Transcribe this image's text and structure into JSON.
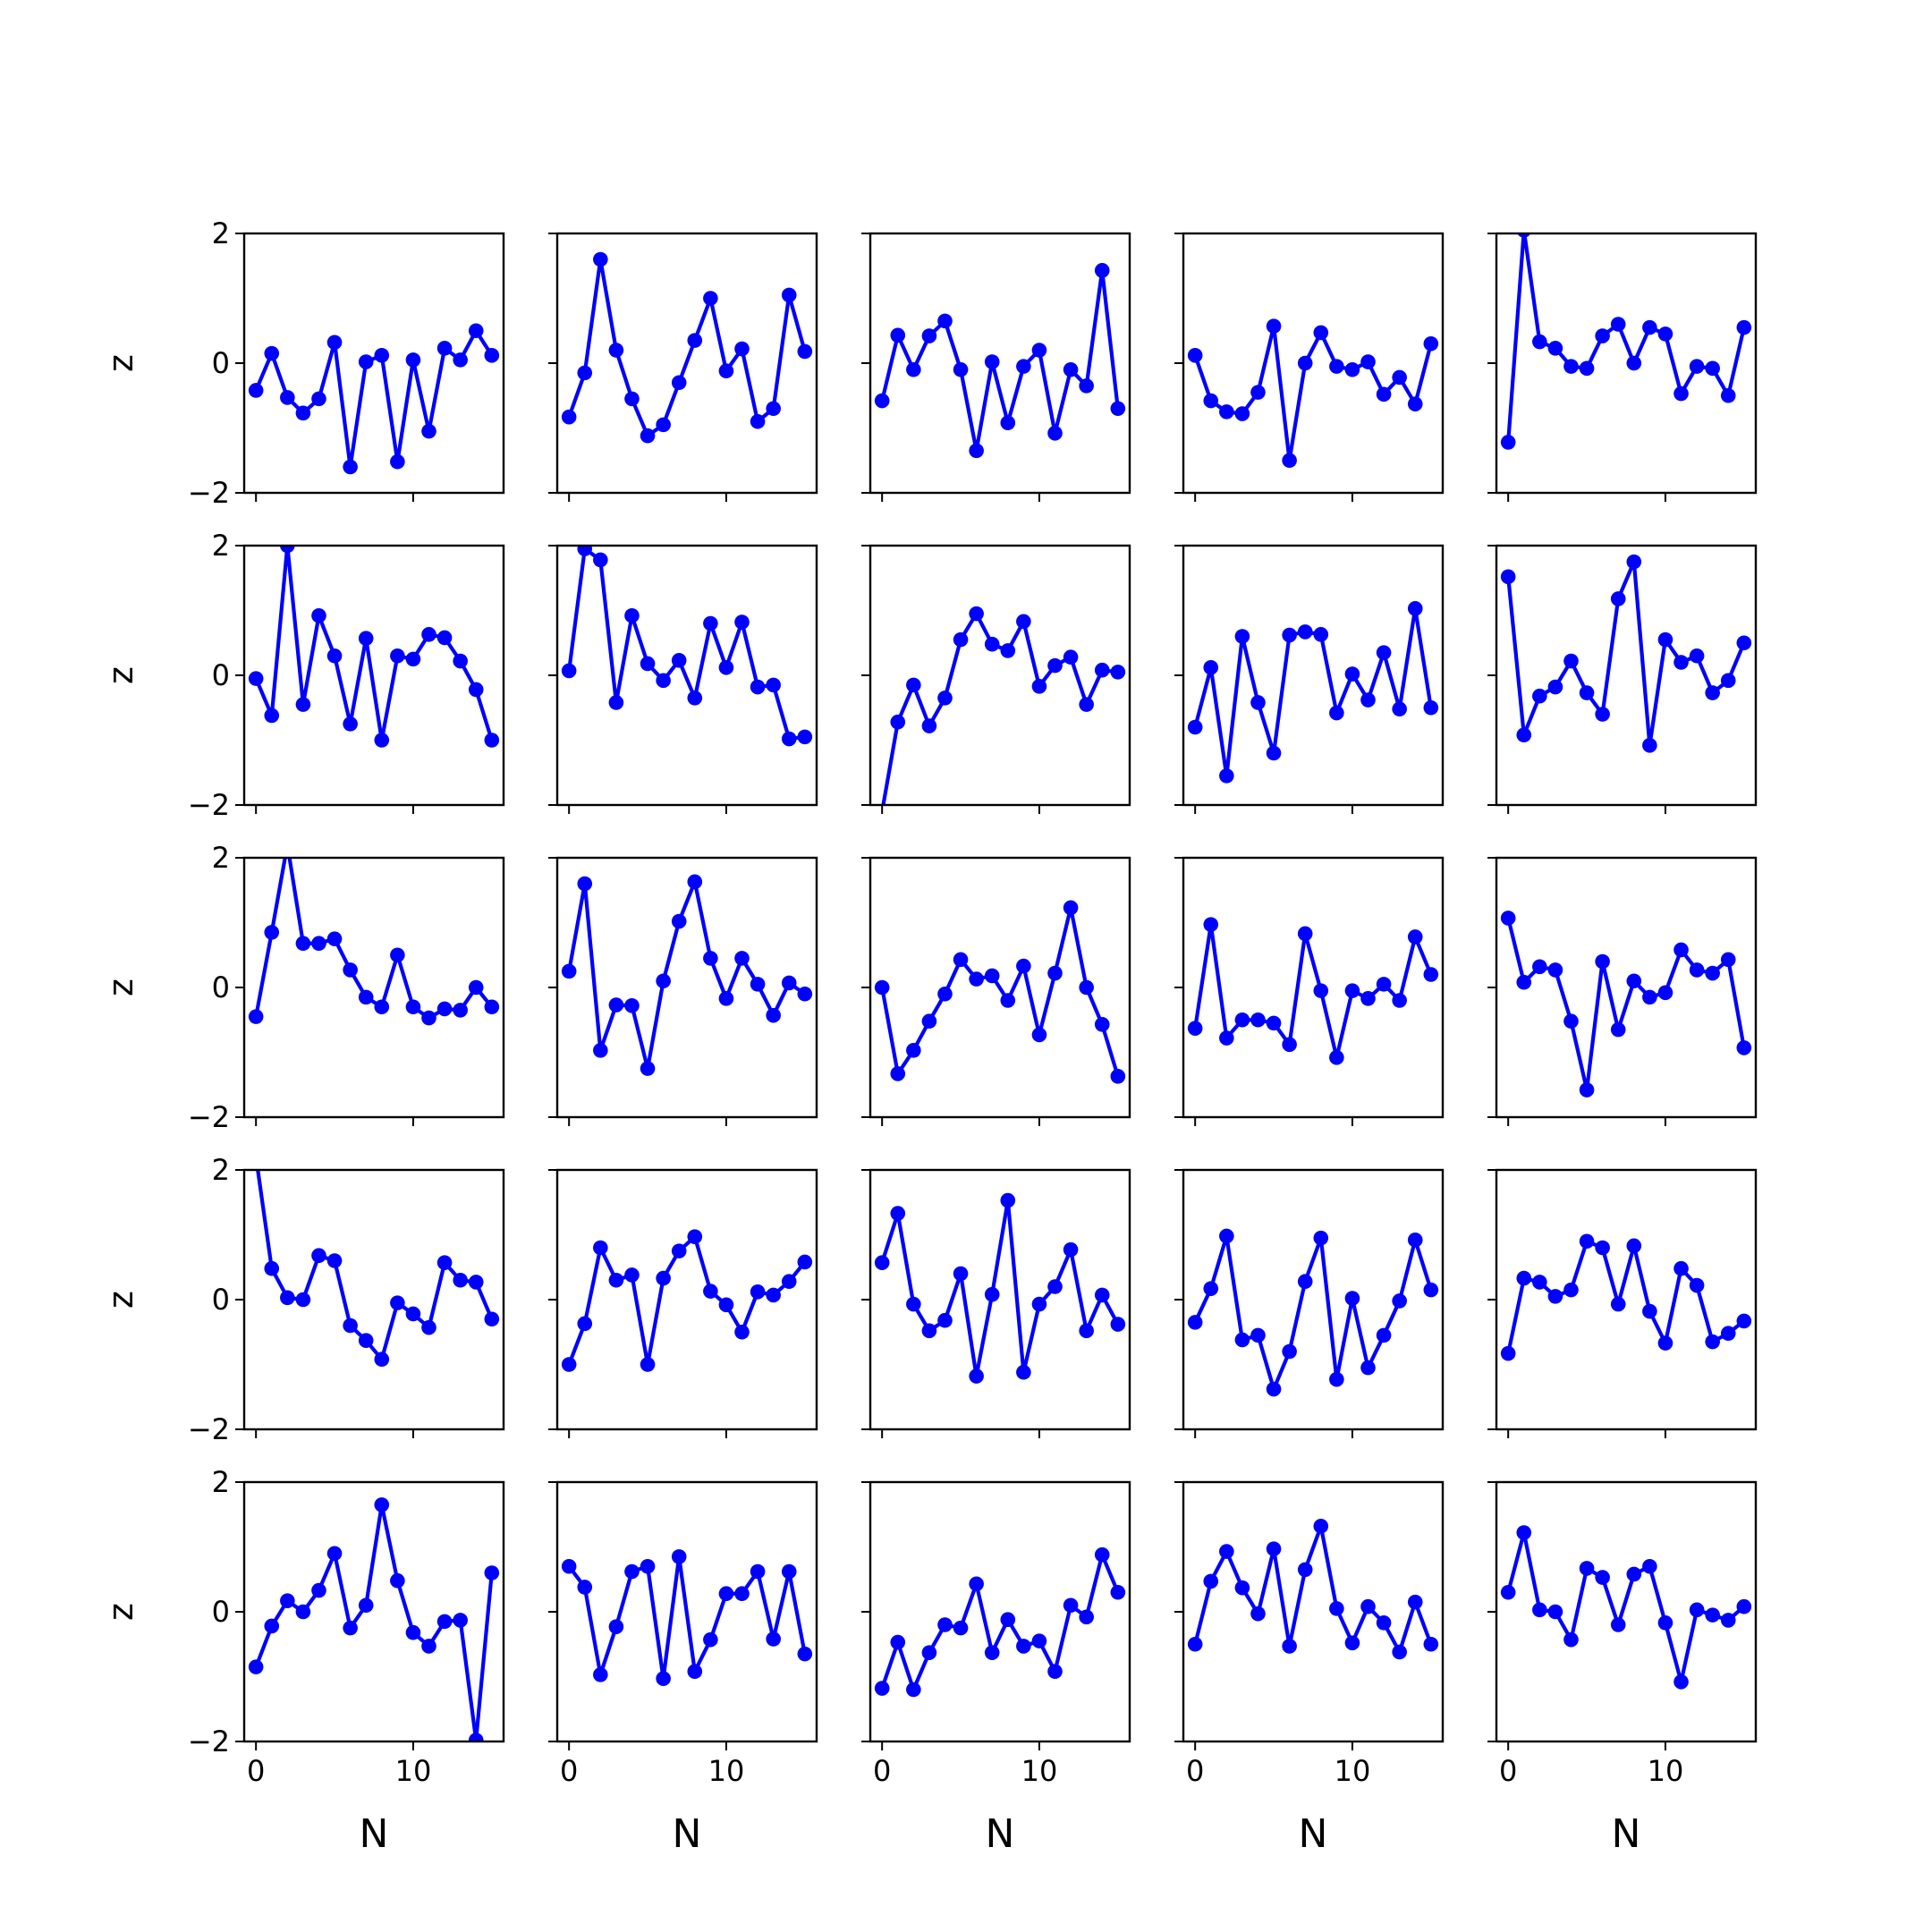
{
  "chart_data": {
    "type": "line",
    "layout": "grid",
    "rows": 5,
    "cols": 5,
    "xlabel": "N",
    "ylabel": "z",
    "xlim": [
      -0.75,
      15.75
    ],
    "ylim": [
      -2,
      2
    ],
    "xticks": [
      0,
      10
    ],
    "yticks": [
      -2,
      0,
      2
    ],
    "xtick_labels": [
      "0",
      "10"
    ],
    "ytick_labels": [
      "−2",
      "0",
      "2"
    ],
    "series_color": "#0000ff",
    "marker": "circle",
    "x": [
      0,
      1,
      2,
      3,
      4,
      5,
      6,
      7,
      8,
      9,
      10,
      11,
      12,
      13,
      14,
      15
    ],
    "panels": [
      [
        -0.42,
        0.15,
        -0.53,
        -0.77,
        -0.55,
        0.32,
        -1.6,
        0.02,
        0.12,
        -1.52,
        0.05,
        -1.05,
        0.23,
        0.05,
        0.5,
        0.12
      ],
      [
        -0.83,
        -0.15,
        1.6,
        0.2,
        -0.55,
        -1.12,
        -0.95,
        -0.3,
        0.35,
        1.0,
        -0.12,
        0.22,
        -0.9,
        -0.7,
        1.05,
        0.18
      ],
      [
        -0.58,
        0.43,
        -0.1,
        0.42,
        0.65,
        -0.1,
        -1.35,
        0.02,
        -0.92,
        -0.05,
        0.2,
        -1.08,
        -0.1,
        -0.35,
        1.43,
        -0.7
      ],
      [
        0.12,
        -0.58,
        -0.75,
        -0.78,
        -0.45,
        0.57,
        -1.5,
        0.0,
        0.47,
        -0.05,
        -0.1,
        0.02,
        -0.48,
        -0.22,
        -0.63,
        0.3
      ],
      [
        -1.22,
        2.05,
        0.33,
        0.23,
        -0.05,
        -0.08,
        0.42,
        0.6,
        0.0,
        0.55,
        0.45,
        -0.47,
        -0.05,
        -0.08,
        -0.5,
        0.55
      ],
      [
        -0.05,
        -0.62,
        2.0,
        -0.45,
        0.92,
        0.3,
        -0.75,
        0.57,
        -1.0,
        0.3,
        0.25,
        0.63,
        0.58,
        0.22,
        -0.22,
        -1.0
      ],
      [
        0.07,
        1.95,
        1.78,
        -0.42,
        0.92,
        0.18,
        -0.08,
        0.23,
        -0.35,
        0.8,
        0.12,
        0.82,
        -0.18,
        -0.15,
        -0.98,
        -0.95
      ],
      [
        -2.1,
        -0.72,
        -0.15,
        -0.78,
        -0.35,
        0.55,
        0.95,
        0.48,
        0.38,
        0.83,
        -0.17,
        0.15,
        0.28,
        -0.45,
        0.08,
        0.05
      ],
      [
        -0.8,
        0.12,
        -1.55,
        0.6,
        -0.42,
        -1.2,
        0.62,
        0.67,
        0.63,
        -0.58,
        0.02,
        -0.38,
        0.35,
        -0.52,
        1.03,
        -0.5
      ],
      [
        1.52,
        -0.92,
        -0.32,
        -0.18,
        0.22,
        -0.27,
        -0.6,
        1.18,
        1.75,
        -1.08,
        0.55,
        0.2,
        0.3,
        -0.27,
        -0.08,
        0.5
      ],
      [
        -0.45,
        0.85,
        2.2,
        0.68,
        0.68,
        0.75,
        0.27,
        -0.15,
        -0.3,
        0.5,
        -0.3,
        -0.47,
        -0.33,
        -0.35,
        0.0,
        -0.3
      ],
      [
        0.25,
        1.6,
        -0.97,
        -0.27,
        -0.28,
        -1.25,
        0.1,
        1.02,
        1.63,
        0.45,
        -0.17,
        0.45,
        0.05,
        -0.43,
        0.07,
        -0.1
      ],
      [
        0.0,
        -1.33,
        -0.97,
        -0.52,
        -0.1,
        0.43,
        0.13,
        0.18,
        -0.2,
        0.33,
        -0.73,
        0.22,
        1.23,
        0.0,
        -0.57,
        -1.37
      ],
      [
        -0.63,
        0.97,
        -0.78,
        -0.5,
        -0.5,
        -0.55,
        -0.88,
        0.83,
        -0.05,
        -1.08,
        -0.05,
        -0.17,
        0.05,
        -0.2,
        0.78,
        0.2
      ],
      [
        1.07,
        0.08,
        0.32,
        0.27,
        -0.52,
        -1.58,
        0.4,
        -0.65,
        0.1,
        -0.15,
        -0.08,
        0.58,
        0.27,
        0.22,
        0.43,
        -0.93
      ],
      [
        2.2,
        0.48,
        0.03,
        0.0,
        0.68,
        0.6,
        -0.4,
        -0.63,
        -0.92,
        -0.05,
        -0.22,
        -0.43,
        0.57,
        0.3,
        0.27,
        -0.3
      ],
      [
        -1.0,
        -0.37,
        0.8,
        0.3,
        0.38,
        -1.0,
        0.33,
        0.75,
        0.97,
        0.13,
        -0.08,
        -0.5,
        0.12,
        0.07,
        0.28,
        0.58
      ],
      [
        0.57,
        1.33,
        -0.07,
        -0.48,
        -0.32,
        0.4,
        -1.18,
        0.08,
        1.53,
        -1.12,
        -0.07,
        0.2,
        0.77,
        -0.48,
        0.07,
        -0.38
      ],
      [
        -0.35,
        0.17,
        0.98,
        -0.62,
        -0.55,
        -1.38,
        -0.8,
        0.28,
        0.95,
        -1.23,
        0.02,
        -1.05,
        -0.55,
        -0.02,
        0.92,
        0.15
      ],
      [
        -0.83,
        0.33,
        0.27,
        0.05,
        0.15,
        0.9,
        0.8,
        -0.07,
        0.83,
        -0.18,
        -0.67,
        0.48,
        0.22,
        -0.65,
        -0.52,
        -0.33
      ],
      [
        -0.85,
        -0.22,
        0.17,
        0.0,
        0.33,
        0.9,
        -0.25,
        0.1,
        1.65,
        0.48,
        -0.32,
        -0.53,
        -0.15,
        -0.13,
        -1.98,
        0.6
      ],
      [
        0.7,
        0.38,
        -0.97,
        -0.23,
        0.62,
        0.7,
        -1.03,
        0.85,
        -0.92,
        -0.43,
        0.28,
        0.28,
        0.62,
        -0.42,
        0.62,
        -0.65
      ],
      [
        -1.18,
        -0.47,
        -1.2,
        -0.63,
        -0.2,
        -0.25,
        0.43,
        -0.63,
        -0.12,
        -0.53,
        -0.45,
        -0.92,
        0.1,
        -0.08,
        0.88,
        0.3
      ],
      [
        -0.5,
        0.47,
        0.93,
        0.37,
        -0.03,
        0.97,
        -0.53,
        0.65,
        1.32,
        0.05,
        -0.48,
        0.08,
        -0.17,
        -0.62,
        0.15,
        -0.5
      ],
      [
        0.3,
        1.22,
        0.03,
        0.0,
        -0.43,
        0.67,
        0.53,
        -0.2,
        0.58,
        0.7,
        -0.17,
        -1.08,
        0.03,
        -0.05,
        -0.13,
        0.08
      ]
    ]
  }
}
